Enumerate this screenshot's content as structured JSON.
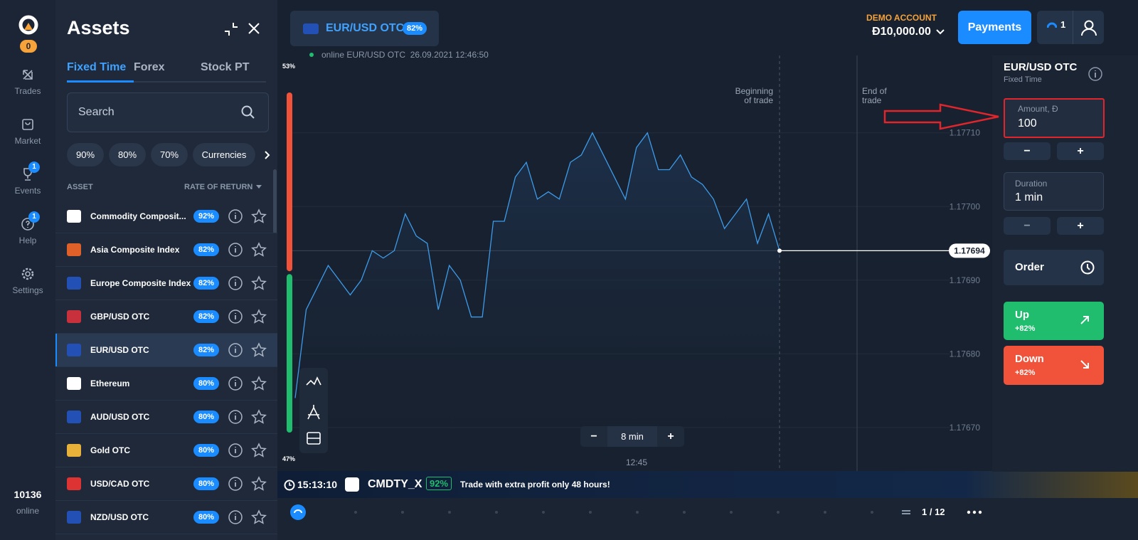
{
  "sidebar": {
    "badge": "0",
    "nav": [
      {
        "label": "Trades"
      },
      {
        "label": "Market"
      },
      {
        "label": "Events",
        "badge": "1"
      },
      {
        "label": "Help",
        "badge": "1"
      },
      {
        "label": "Settings"
      }
    ],
    "online_count": "10136",
    "online_label": "online"
  },
  "assets_panel": {
    "title": "Assets",
    "tabs": [
      "Fixed Time",
      "Forex",
      "Stock PT"
    ],
    "active_tab": 0,
    "search_placeholder": "Search",
    "filters": [
      "90%",
      "80%",
      "70%",
      "Currencies"
    ],
    "columns": [
      "ASSET",
      "RATE OF RETURN"
    ],
    "selected_index": 4,
    "assets": [
      {
        "name": "Commodity Composit...",
        "rate": "92%"
      },
      {
        "name": "Asia Composite Index",
        "rate": "82%"
      },
      {
        "name": "Europe Composite Index",
        "rate": "82%"
      },
      {
        "name": "GBP/USD OTC",
        "rate": "82%"
      },
      {
        "name": "EUR/USD OTC",
        "rate": "82%"
      },
      {
        "name": "Ethereum",
        "rate": "80%"
      },
      {
        "name": "AUD/USD OTC",
        "rate": "80%"
      },
      {
        "name": "Gold OTC",
        "rate": "80%"
      },
      {
        "name": "USD/CAD OTC",
        "rate": "80%"
      },
      {
        "name": "NZD/USD OTC",
        "rate": "80%"
      }
    ]
  },
  "header": {
    "asset": "EUR/USD OTC",
    "rate": "82%",
    "account_label": "DEMO ACCOUNT",
    "balance": "Đ10,000.00",
    "payments": "Payments",
    "notifications": "1"
  },
  "chart": {
    "type": "line",
    "status": "online EUR/USD OTC  26.09.2021 12:46:50",
    "color": "#3d9be9",
    "sentiment": [
      {
        "value": 53,
        "label": "53%"
      },
      {
        "value": 47,
        "label": "47%"
      }
    ],
    "ylim": [
      1.17664,
      1.177205
    ],
    "yticks": [
      {
        "value": 1.1767,
        "label": "1.17670"
      },
      {
        "value": 1.1768,
        "label": "1.17680"
      },
      {
        "value": 1.1769,
        "label": "1.17690"
      },
      {
        "value": 1.177,
        "label": "1.17700"
      },
      {
        "value": 1.1771,
        "label": "1.17710"
      }
    ],
    "values": [
      1.17674,
      1.17686,
      1.17689,
      1.17692,
      1.1769,
      1.17688,
      1.1769,
      1.17694,
      1.17693,
      1.17694,
      1.17699,
      1.17696,
      1.17695,
      1.17686,
      1.17692,
      1.1769,
      1.17685,
      1.17685,
      1.17698,
      1.17698,
      1.17704,
      1.17706,
      1.17701,
      1.17702,
      1.17701,
      1.17706,
      1.17707,
      1.1771,
      1.17707,
      1.17704,
      1.17701,
      1.17708,
      1.1771,
      1.17705,
      1.17705,
      1.17707,
      1.17704,
      1.17703,
      1.17701,
      1.17697,
      1.17699,
      1.17701,
      1.17695,
      1.17699,
      1.17694
    ],
    "current_price": 1.17694,
    "annotations": [
      [
        "Beginning",
        "of trade"
      ],
      [
        "End of",
        "trade"
      ]
    ],
    "x_label": "12:45",
    "zoom": "8 min",
    "zoom_minus": "−",
    "zoom_plus": "+"
  },
  "ticker": {
    "time": "15:13:10",
    "symbol": "CMDTY_X",
    "rate": "92%",
    "message": "Trade with extra profit only 48 hours!",
    "page": "1 / 12"
  },
  "trade_panel": {
    "asset": "EUR/USD OTC",
    "mode": "Fixed Time",
    "amount_label": "Amount, Đ",
    "amount": "100",
    "duration_label": "Duration",
    "duration": "1 min",
    "minus": "−",
    "plus": "+",
    "order": "Order",
    "up": "Up",
    "up_rate": "+82%",
    "down": "Down",
    "down_rate": "+82%"
  }
}
